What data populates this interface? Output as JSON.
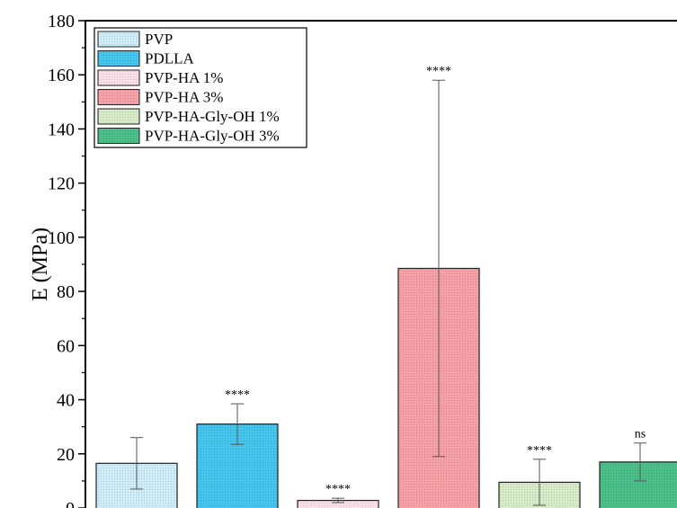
{
  "chart_data": {
    "type": "bar",
    "ylabel": "E (MPa)",
    "xlabel": "",
    "title": "",
    "ylim": [
      0,
      180
    ],
    "yticks": [
      0,
      20,
      40,
      60,
      80,
      100,
      120,
      140,
      160,
      180
    ],
    "legend_position": "top-left",
    "series": [
      {
        "name": "PVP",
        "value": 16.5,
        "error_low": 7.0,
        "error_high": 26.0,
        "significance": "",
        "color": "#cfeefa"
      },
      {
        "name": "PDLLA",
        "value": 31.0,
        "error_low": 23.5,
        "error_high": 38.5,
        "significance": "****",
        "color": "#44c6ee"
      },
      {
        "name": "PVP-HA 1%",
        "value": 2.8,
        "error_low": 2.0,
        "error_high": 3.6,
        "significance": "****",
        "color": "#fbe0ea"
      },
      {
        "name": "PVP-HA 3%",
        "value": 88.5,
        "error_low": 19.0,
        "error_high": 158.0,
        "significance": "****",
        "color": "#f7a1a8"
      },
      {
        "name": "PVP-HA-Gly-OH 1%",
        "value": 9.5,
        "error_low": 1.0,
        "error_high": 18.0,
        "significance": "****",
        "color": "#d8ecc9"
      },
      {
        "name": "PVP-HA-Gly-OH 3%",
        "value": 17.0,
        "error_low": 10.0,
        "error_high": 24.0,
        "significance": "ns",
        "color": "#4cc089"
      }
    ]
  }
}
